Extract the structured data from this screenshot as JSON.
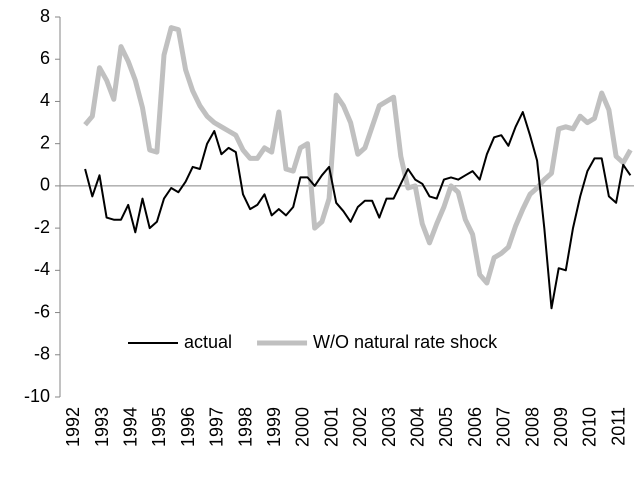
{
  "chart_data": {
    "type": "line",
    "categories": [
      "1992",
      null,
      null,
      null,
      "1993",
      null,
      null,
      null,
      "1994",
      null,
      null,
      null,
      "1995",
      null,
      null,
      null,
      "1996",
      null,
      null,
      null,
      "1997",
      null,
      null,
      null,
      "1998",
      null,
      null,
      null,
      "1999",
      null,
      null,
      null,
      "2000",
      null,
      null,
      null,
      "2001",
      null,
      null,
      null,
      "2002",
      null,
      null,
      null,
      "2003",
      null,
      null,
      null,
      "2004",
      null,
      null,
      null,
      "2005",
      null,
      null,
      null,
      "2006",
      null,
      null,
      null,
      "2007",
      null,
      null,
      null,
      "2008",
      null,
      null,
      null,
      "2009",
      null,
      null,
      null,
      "2010",
      null,
      null,
      null,
      "2011",
      null,
      null,
      null
    ],
    "series": [
      {
        "name": "actual",
        "color": "#000000",
        "width": 2,
        "values": [
          null,
          null,
          null,
          0.8,
          -0.5,
          0.5,
          -1.5,
          -1.6,
          -1.6,
          -0.9,
          -2.2,
          -0.6,
          -2.0,
          -1.7,
          -0.6,
          -0.1,
          -0.3,
          0.2,
          0.9,
          0.8,
          2.0,
          2.6,
          1.5,
          1.8,
          1.6,
          -0.4,
          -1.1,
          -0.9,
          -0.4,
          -1.4,
          -1.1,
          -1.4,
          -1.0,
          0.4,
          0.4,
          0.0,
          0.5,
          0.9,
          -0.8,
          -1.2,
          -1.7,
          -1.0,
          -0.7,
          -0.7,
          -1.5,
          -0.6,
          -0.6,
          0.1,
          0.8,
          0.3,
          0.1,
          -0.5,
          -0.6,
          0.3,
          0.4,
          0.3,
          0.5,
          0.7,
          0.3,
          1.5,
          2.3,
          2.4,
          1.9,
          2.8,
          3.5,
          2.4,
          1.2,
          -2.0,
          -5.8,
          -3.9,
          -4.0,
          -2.0,
          -0.5,
          0.7,
          1.3,
          1.3,
          -0.5,
          -0.8,
          1.0,
          0.5
        ]
      },
      {
        "name": "W/O natural rate shock",
        "color": "#c0c0c0",
        "width": 5,
        "values": [
          null,
          null,
          null,
          2.9,
          3.3,
          5.6,
          5.0,
          4.1,
          6.6,
          5.9,
          5.0,
          3.7,
          1.7,
          1.6,
          6.2,
          7.5,
          7.4,
          5.5,
          4.5,
          3.8,
          3.3,
          3.0,
          2.8,
          2.6,
          2.4,
          1.7,
          1.3,
          1.3,
          1.8,
          1.6,
          3.5,
          0.8,
          0.7,
          1.8,
          2.0,
          -2.0,
          -1.7,
          -0.6,
          4.3,
          3.8,
          3.0,
          1.5,
          1.8,
          2.8,
          3.8,
          4.0,
          4.2,
          1.4,
          -0.1,
          0.0,
          -1.8,
          -2.7,
          -1.8,
          -1.0,
          0.0,
          -0.3,
          -1.6,
          -2.3,
          -4.2,
          -4.6,
          -3.4,
          -3.2,
          -2.9,
          -1.9,
          -1.1,
          -0.4,
          -0.1,
          0.3,
          0.6,
          2.7,
          2.8,
          2.7,
          3.3,
          3.0,
          3.2,
          4.4,
          3.6,
          1.4,
          1.1,
          1.7
        ]
      }
    ],
    "ylim": [
      -10,
      8
    ],
    "yticks": [
      -10,
      -8,
      -6,
      -4,
      -2,
      0,
      2,
      4,
      6,
      8
    ],
    "grid": false,
    "legend": "lower center"
  }
}
